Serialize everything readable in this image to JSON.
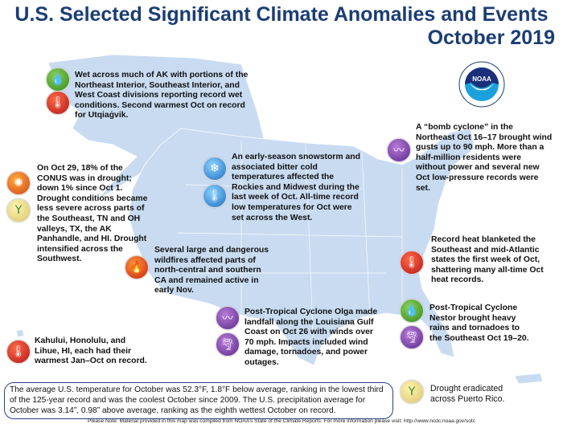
{
  "title": {
    "line1": "U.S. Selected Significant Climate Anomalies and Events",
    "line2": "October 2019"
  },
  "logo": {
    "text": "NOAA",
    "ring_text": "NATIONAL OCEANIC AND ATMOSPHERIC ADMINISTRATION · U.S. DEPARTMENT OF COMMERCE"
  },
  "colors": {
    "title": "#1b3d73",
    "map": "#c8dbf1",
    "box_border": "#2b3f88"
  },
  "events": {
    "alaska": {
      "icons": [
        "wet-icon",
        "warm-icon"
      ],
      "text": "Wet across much of AK with portions of the Northeast Interior, Southeast Interior, and West Coast divisions reporting record wet conditions. Second warmest Oct on record for Utqiaġvik."
    },
    "bomb_cyclone": {
      "icons": [
        "storm-icon"
      ],
      "text": "A “bomb cyclone” in the Northeast Oct 16–17 brought wind gusts up to 90 mph. More than a half-million residents were without power and several new Oct low-pressure records were set."
    },
    "drought": {
      "icons": [
        "drought-icon",
        "drought-improvement-icon"
      ],
      "text": "On Oct 29, 18% of the CONUS was in drought; down 1% since Oct 1. Drought conditions became less severe across parts of the Southeast, TN and OH valleys, TX, the AK Panhandle, and HI. Drought intensified across the Southwest."
    },
    "snowstorm": {
      "icons": [
        "snowflake-icon",
        "cold-icon"
      ],
      "text": "An early-season snowstorm and associated bitter cold temperatures affected the Rockies and Midwest during the last week of Oct. All-time record low temperatures for Oct were set across the West."
    },
    "wildfires": {
      "icons": [
        "fire-icon"
      ],
      "text": "Several large and dangerous wildfires affected parts of north-central and southern CA and remained active in early Nov."
    },
    "record_heat": {
      "icons": [
        "warm-icon"
      ],
      "text": "Record heat blanketed the Southeast and mid-Atlantic states the first week of Oct, shattering many all-time Oct heat records."
    },
    "olga": {
      "icons": [
        "storm-icon",
        "tornado-icon"
      ],
      "text": "Post-Tropical Cyclone Olga made landfall along the Louisiana Gulf Coast on Oct 26 with winds over 70 mph. Impacts included wind damage, tornadoes, and power outages."
    },
    "nestor": {
      "icons": [
        "wet-icon",
        "tornado-icon"
      ],
      "text": "Post-Tropical Cyclone Nestor brought heavy rains and tornadoes to the Southeast Oct 19–20."
    },
    "hawaii": {
      "icons": [
        "warm-icon"
      ],
      "text": "Kahului, Honolulu, and Lihue, HI, each had their warmest Jan–Oct on record."
    },
    "puerto_rico": {
      "icons": [
        "drought-improvement-icon"
      ],
      "text": "Drought eradicated across Puerto Rico."
    }
  },
  "summary": "The average U.S. temperature for October was 52.3°F, 1.8°F below average, ranking in the lowest third of the 125-year record and was the coolest October since 2009. The U.S. precipitation average for October was 3.14”, 0.98” above average, ranking as the eighth wettest October on record.",
  "note": "Please Note: Material provided in this map was compiled from NOAA’s State of the Climate Reports. For more information please visit: http://www.ncdc.noaa.gov/sotc"
}
